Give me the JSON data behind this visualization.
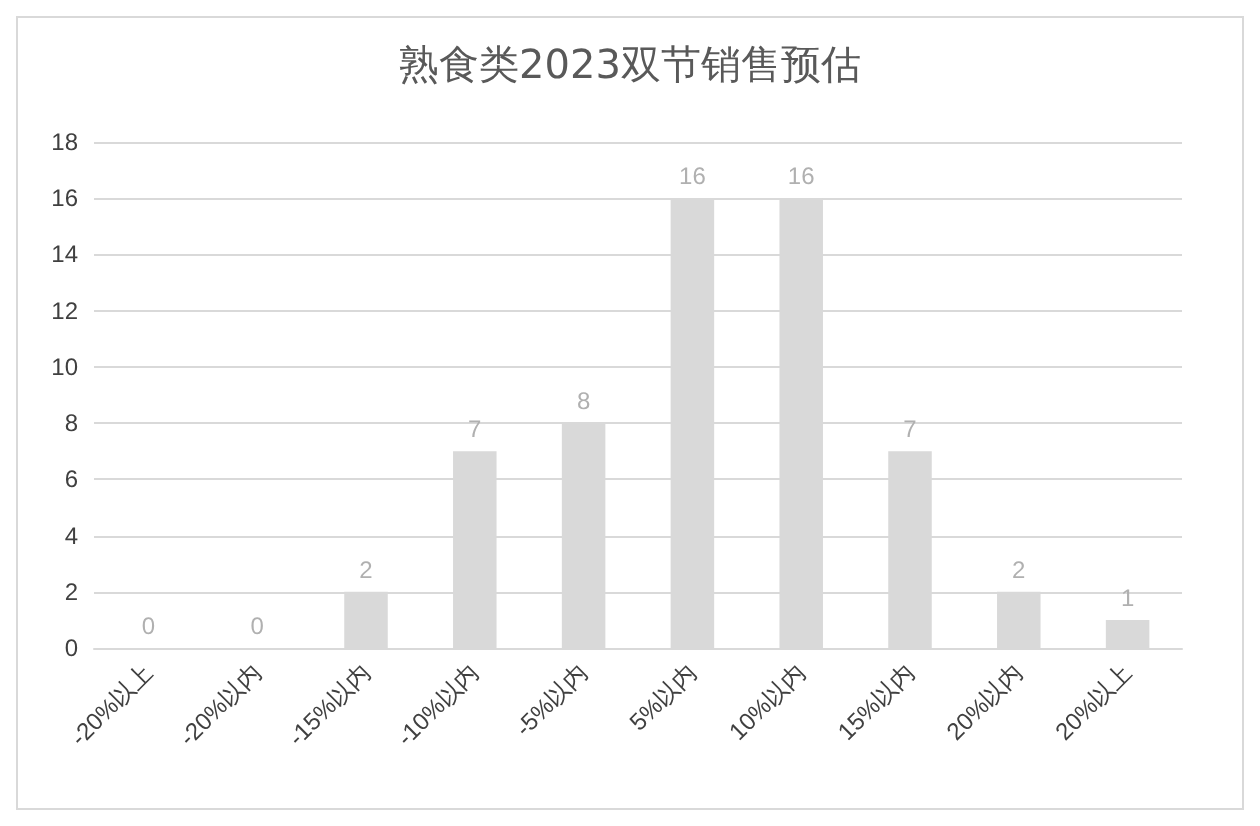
{
  "chart_data": {
    "type": "bar",
    "title": "熟食类2023双节销售预估",
    "categories": [
      "-20%以上",
      "-20%以内",
      "-15%以内",
      "-10%以内",
      "-5%以内",
      "5%以内",
      "10%以内",
      "15%以内",
      "20%以内",
      "20%以上"
    ],
    "values": [
      0,
      0,
      2,
      7,
      8,
      16,
      16,
      7,
      2,
      1
    ],
    "color": "#d9d9d9",
    "ylim": [
      0,
      18
    ],
    "yticks": [
      0,
      2,
      4,
      6,
      8,
      10,
      12,
      14,
      16,
      18
    ],
    "grid": "y",
    "data_labels": true
  }
}
